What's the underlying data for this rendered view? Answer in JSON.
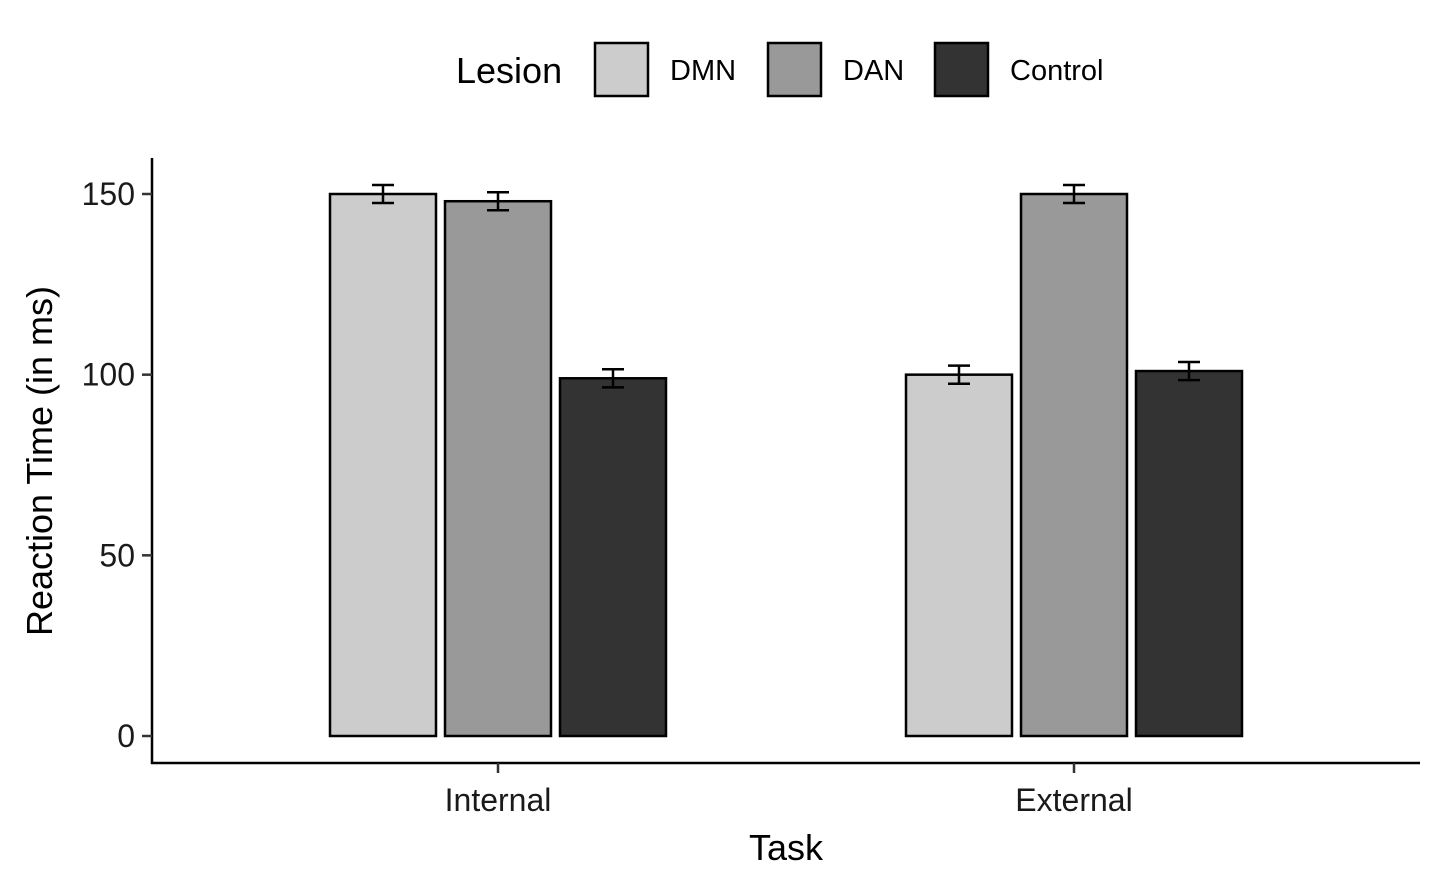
{
  "chart_data": {
    "type": "bar",
    "title": "",
    "xlabel": "Task",
    "ylabel": "Reaction Time (in ms)",
    "categories": [
      "Internal",
      "External"
    ],
    "ylim": [
      -7.5,
      160
    ],
    "yticks": [
      0,
      50,
      100,
      150
    ],
    "grid": false,
    "legend": {
      "title": "Lesion",
      "placement": "top"
    },
    "series": [
      {
        "name": "DMN",
        "color": "#cccccc",
        "values": [
          150,
          100
        ],
        "errors": [
          2.5,
          2.5
        ]
      },
      {
        "name": "DAN",
        "color": "#999999",
        "values": [
          148,
          150
        ],
        "errors": [
          2.5,
          2.5
        ]
      },
      {
        "name": "Control",
        "color": "#333333",
        "values": [
          99,
          101
        ],
        "errors": [
          2.5,
          2.5
        ]
      }
    ]
  }
}
